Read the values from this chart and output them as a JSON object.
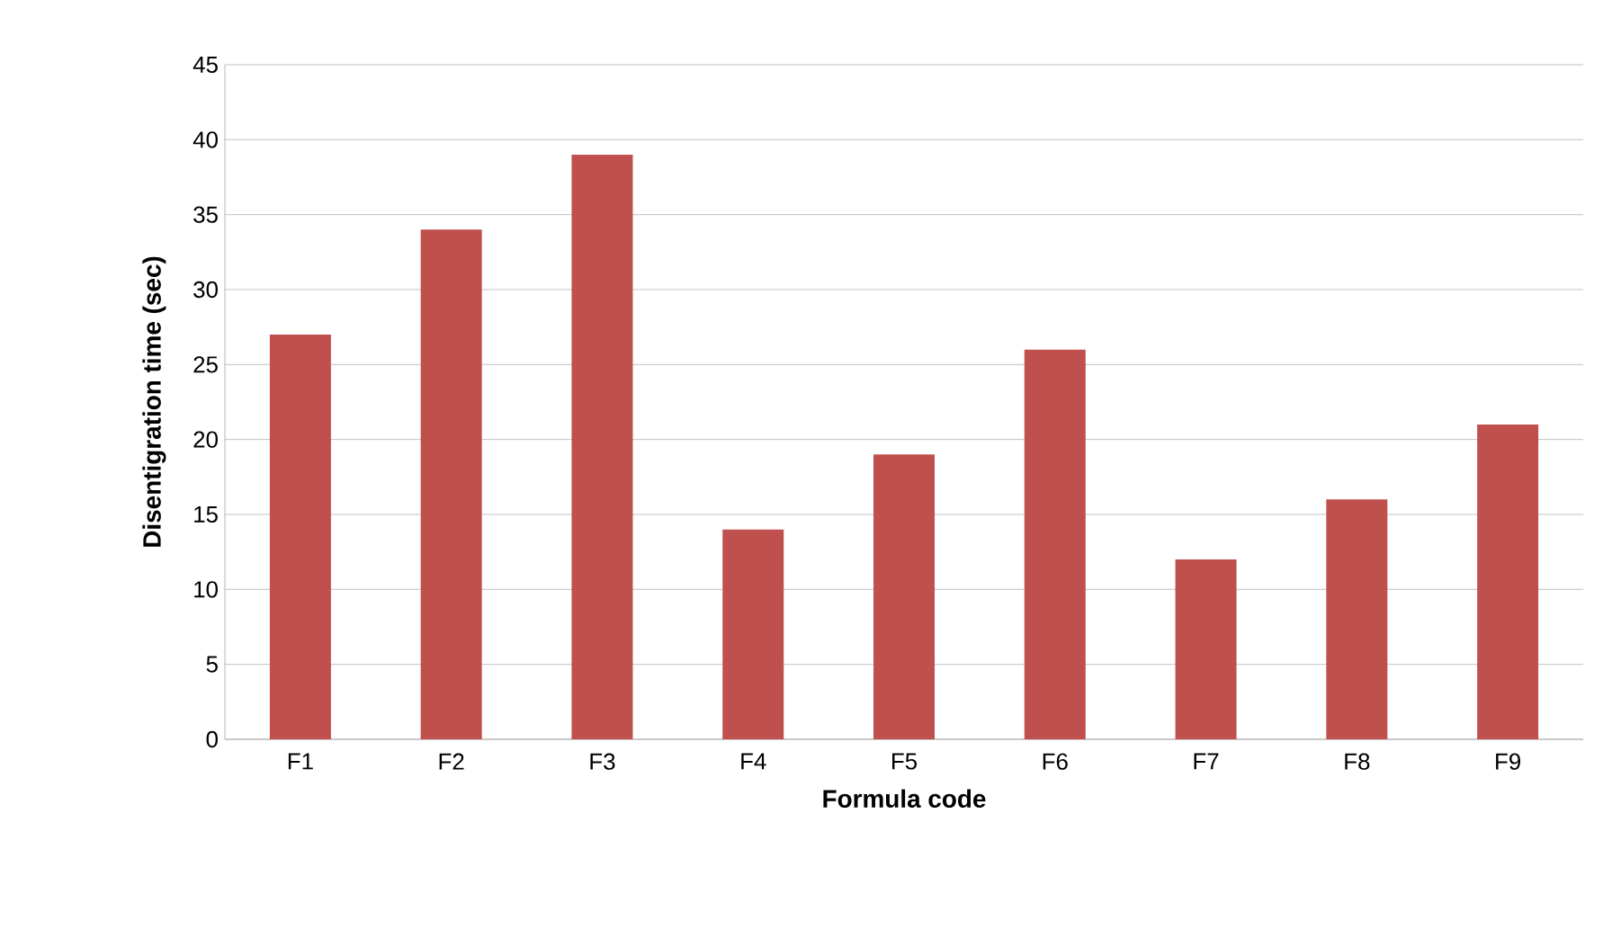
{
  "chart_data": {
    "type": "bar",
    "xlabel": "Formula code",
    "ylabel": "Disentigration  time (sec)",
    "categories": [
      "F1",
      "F2",
      "F3",
      "F4",
      "F5",
      "F6",
      "F7",
      "F8",
      "F9"
    ],
    "values": [
      27,
      34,
      39,
      14,
      19,
      26,
      12,
      16,
      21
    ],
    "color": "#c0504d",
    "ylim": [
      0,
      45
    ],
    "yticks": [
      0,
      5,
      10,
      15,
      20,
      25,
      30,
      35,
      40,
      45
    ],
    "grid": "y"
  }
}
